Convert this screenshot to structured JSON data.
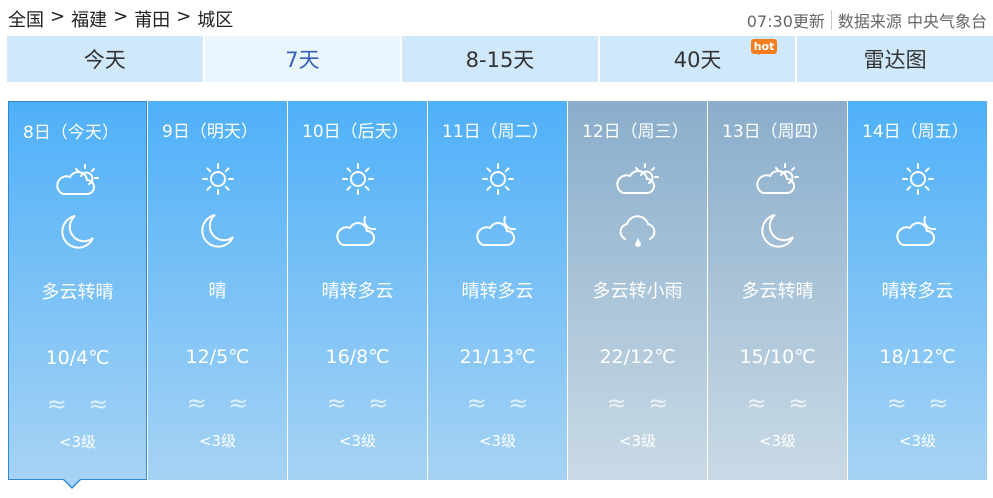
{
  "breadcrumb": [
    "全国",
    "福建",
    "莆田",
    "城区"
  ],
  "breadcrumb_sep": ">",
  "update_time": "07:30更新",
  "source": "数据来源 中央气象台",
  "tabs": [
    {
      "label": "今天"
    },
    {
      "label": "7天",
      "active": true
    },
    {
      "label": "8-15天"
    },
    {
      "label": "40天",
      "badge": "hot"
    },
    {
      "label": "雷达图"
    }
  ],
  "colors": {
    "day_top": "#4fb0f8",
    "rain_top": "#8aadcb",
    "tab": "#cfe8fb",
    "hot": "#f57c1f"
  },
  "days": [
    {
      "date": "8日（今天）",
      "day_icon": "partly-cloudy",
      "night_icon": "moon",
      "weather": "多云转晴",
      "temp": "10/4℃",
      "wind": "≈ ≈",
      "level": "<3级",
      "selected": true
    },
    {
      "date": "9日（明天）",
      "day_icon": "sun",
      "night_icon": "moon",
      "weather": "晴",
      "temp": "12/5℃",
      "wind": "≈ ≈",
      "level": "<3级"
    },
    {
      "date": "10日（后天）",
      "day_icon": "sun",
      "night_icon": "cloud-moon",
      "weather": "晴转多云",
      "temp": "16/8℃",
      "wind": "≈ ≈",
      "level": "<3级"
    },
    {
      "date": "11日（周二）",
      "day_icon": "sun",
      "night_icon": "cloud-moon",
      "weather": "晴转多云",
      "temp": "21/13℃",
      "wind": "≈ ≈",
      "level": "<3级"
    },
    {
      "date": "12日（周三）",
      "day_icon": "partly-cloudy",
      "night_icon": "rain",
      "weather": "多云转小雨",
      "temp": "22/12℃",
      "wind": "≈ ≈",
      "level": "<3级",
      "gray": true
    },
    {
      "date": "13日（周四）",
      "day_icon": "partly-cloudy",
      "night_icon": "moon",
      "weather": "多云转晴",
      "temp": "15/10℃",
      "wind": "≈ ≈",
      "level": "<3级",
      "gray": true
    },
    {
      "date": "14日（周五）",
      "day_icon": "sun",
      "night_icon": "cloud-moon",
      "weather": "晴转多云",
      "temp": "18/12℃",
      "wind": "≈ ≈",
      "level": "<3级"
    }
  ]
}
